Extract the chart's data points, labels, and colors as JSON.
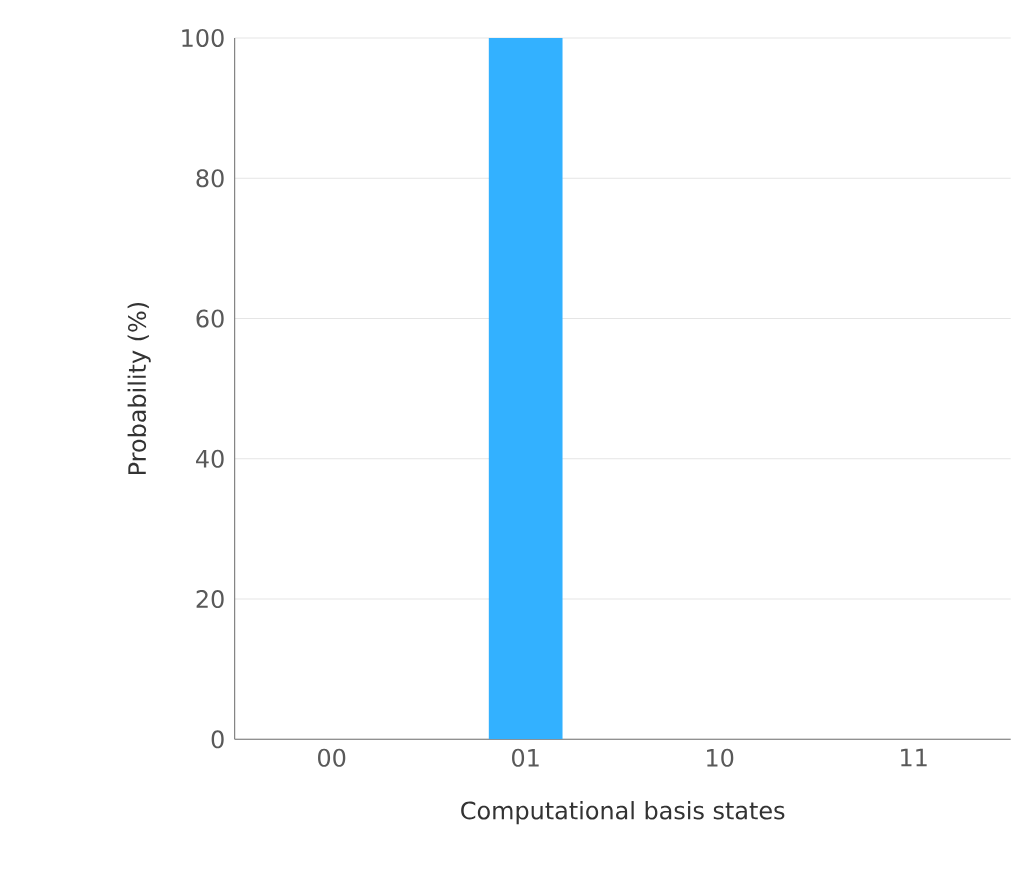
{
  "chart_data": {
    "type": "bar",
    "xlabel": "Computational basis states",
    "ylabel": "Probability (%)",
    "categories": [
      "00",
      "01",
      "10",
      "11"
    ],
    "values": [
      0,
      100,
      0,
      0
    ],
    "color": "#33b1ff",
    "ylim": [
      0,
      100
    ],
    "yticks": [
      0,
      20,
      40,
      60,
      80,
      100
    ],
    "grid": "y"
  }
}
